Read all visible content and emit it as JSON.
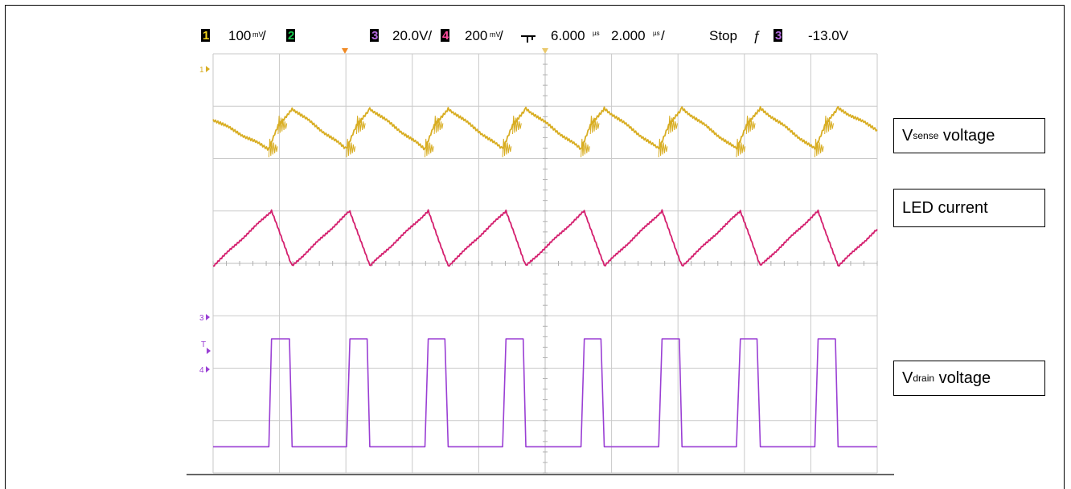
{
  "status_bar": {
    "ch1_badge": "1",
    "ch1_scale": "100",
    "ch2_badge": "2",
    "ch3_badge": "3",
    "ch3_scale": "20.0V/",
    "ch4_badge": "4",
    "ch4_scale": "200",
    "trigger_pos": "6.000",
    "timebase": "2.000",
    "run_state": "Stop",
    "trig_badge": "3",
    "trig_level": "-13.0V",
    "colors": {
      "ch1": "#f2d51c",
      "ch2": "#16c94d",
      "ch3": "#9b41c8",
      "ch4": "#ff4d9d"
    }
  },
  "channel_markers": {
    "ch1": "1",
    "ch3": "3",
    "trigger": "T",
    "ch4": "4"
  },
  "callouts": {
    "vsense": {
      "main": "V",
      "sub": "sense",
      "rest": " voltage"
    },
    "led": {
      "text": "LED current"
    },
    "vdrain": {
      "main": "V",
      "sub": "drain",
      "rest": " voltage"
    }
  },
  "chart_data": {
    "type": "line",
    "grid": true,
    "x_divisions": 10,
    "y_divisions": 8,
    "x_range_div": [
      0,
      10
    ],
    "y_range_div": [
      0,
      8
    ],
    "switching_period_div": 1.17,
    "series": [
      {
        "name": "V sense voltage",
        "color": "#d8ad22",
        "x": [
          0.0,
          0.84,
          0.98,
          1.19,
          2.01,
          2.16,
          2.36,
          3.19,
          3.33,
          3.54,
          4.36,
          4.51,
          4.71,
          5.54,
          5.68,
          5.89,
          6.71,
          6.86,
          7.06,
          7.88,
          8.03,
          8.24,
          9.06,
          9.21,
          9.41,
          10.0
        ],
        "y": [
          6.75,
          6.18,
          6.62,
          6.96,
          6.18,
          6.62,
          6.96,
          6.18,
          6.62,
          6.96,
          6.18,
          6.62,
          6.96,
          6.18,
          6.62,
          6.96,
          6.18,
          6.62,
          6.96,
          6.18,
          6.62,
          6.96,
          6.18,
          6.62,
          6.96,
          6.55
        ]
      },
      {
        "name": "LED current",
        "color": "#d41f6e",
        "x": [
          0.0,
          0.88,
          1.19,
          2.06,
          2.36,
          3.24,
          3.54,
          4.41,
          4.71,
          5.59,
          5.89,
          6.76,
          7.06,
          7.94,
          8.24,
          9.11,
          9.41,
          10.0
        ],
        "y": [
          3.95,
          5.0,
          3.95,
          5.0,
          3.95,
          5.0,
          3.95,
          5.0,
          3.95,
          5.0,
          3.95,
          5.0,
          3.95,
          5.0,
          3.95,
          5.0,
          3.95,
          4.65
        ]
      },
      {
        "name": "V drain voltage",
        "color": "#9a3fd4",
        "x": [
          0.0,
          0.84,
          0.88,
          1.15,
          1.19,
          2.01,
          2.06,
          2.32,
          2.36,
          3.19,
          3.24,
          3.49,
          3.54,
          4.36,
          4.41,
          4.67,
          4.71,
          5.54,
          5.59,
          5.84,
          5.89,
          6.71,
          6.76,
          7.02,
          7.06,
          7.88,
          7.94,
          8.19,
          8.24,
          9.06,
          9.11,
          9.37,
          9.41,
          10.0
        ],
        "y": [
          0.5,
          0.5,
          2.56,
          2.56,
          0.5,
          0.5,
          2.56,
          2.56,
          0.5,
          0.5,
          2.56,
          2.56,
          0.5,
          0.5,
          2.56,
          2.56,
          0.5,
          0.5,
          2.56,
          2.56,
          0.5,
          0.5,
          2.56,
          2.56,
          0.5,
          0.5,
          2.56,
          2.56,
          0.5,
          0.5,
          2.56,
          2.56,
          0.5,
          0.5
        ]
      }
    ]
  }
}
